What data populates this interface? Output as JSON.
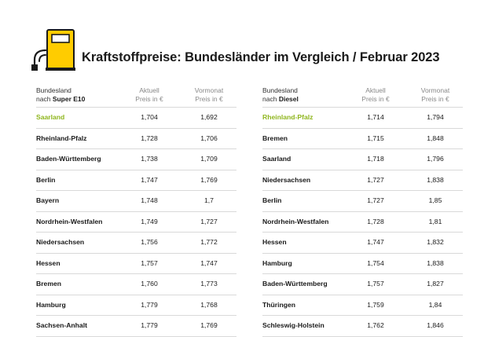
{
  "title": "Kraftstoffpreise: Bundesländer im Vergleich / Februar 2023",
  "colors": {
    "accent_yellow": "#ffcc00",
    "highlight_green": "#8fb61e",
    "divider": "#d9d9d9"
  },
  "icon": "fuel-pump-icon",
  "left_table": {
    "header": {
      "col1_line1": "Bundesland",
      "col1_prefix": "nach",
      "col1_fuel": "Super E10",
      "col2_line1": "Aktuell",
      "col2_line2": "Preis in €",
      "col3_line1": "Vormonat",
      "col3_line2": "Preis in €"
    },
    "rows": [
      {
        "name": "Saarland",
        "current": "1,704",
        "previous": "1,692"
      },
      {
        "name": "Rheinland-Pfalz",
        "current": "1,728",
        "previous": "1,706"
      },
      {
        "name": "Baden-Württemberg",
        "current": "1,738",
        "previous": "1,709"
      },
      {
        "name": "Berlin",
        "current": "1,747",
        "previous": "1,769"
      },
      {
        "name": "Bayern",
        "current": "1,748",
        "previous": "1,7"
      },
      {
        "name": "Nordrhein-Westfalen",
        "current": "1,749",
        "previous": "1,727"
      },
      {
        "name": "Niedersachsen",
        "current": "1,756",
        "previous": "1,772"
      },
      {
        "name": "Hessen",
        "current": "1,757",
        "previous": "1,747"
      },
      {
        "name": "Bremen",
        "current": "1,760",
        "previous": "1,773"
      },
      {
        "name": "Hamburg",
        "current": "1,779",
        "previous": "1,768"
      },
      {
        "name": "Sachsen-Anhalt",
        "current": "1,779",
        "previous": "1,769"
      }
    ]
  },
  "right_table": {
    "header": {
      "col1_line1": "Bundesland",
      "col1_prefix": "nach",
      "col1_fuel": "Diesel",
      "col2_line1": "Aktuell",
      "col2_line2": "Preis in €",
      "col3_line1": "Vormonat",
      "col3_line2": "Preis in €"
    },
    "rows": [
      {
        "name": "Rheinland-Pfalz",
        "current": "1,714",
        "previous": "1,794"
      },
      {
        "name": "Bremen",
        "current": "1,715",
        "previous": "1,848"
      },
      {
        "name": "Saarland",
        "current": "1,718",
        "previous": "1,796"
      },
      {
        "name": "Niedersachsen",
        "current": "1,727",
        "previous": "1,838"
      },
      {
        "name": "Berlin",
        "current": "1,727",
        "previous": "1,85"
      },
      {
        "name": "Nordrhein-Westfalen",
        "current": "1,728",
        "previous": "1,81"
      },
      {
        "name": "Hessen",
        "current": "1,747",
        "previous": "1,832"
      },
      {
        "name": "Hamburg",
        "current": "1,754",
        "previous": "1,838"
      },
      {
        "name": "Baden-Württemberg",
        "current": "1,757",
        "previous": "1,827"
      },
      {
        "name": "Thüringen",
        "current": "1,759",
        "previous": "1,84"
      },
      {
        "name": "Schleswig-Holstein",
        "current": "1,762",
        "previous": "1,846"
      }
    ]
  }
}
